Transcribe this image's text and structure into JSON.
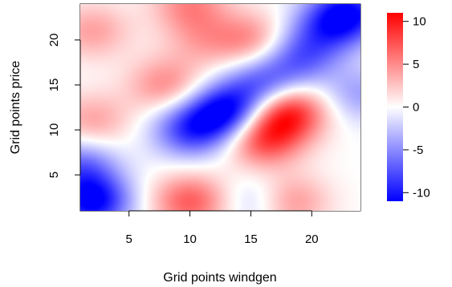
{
  "chart_data": {
    "type": "heatmap",
    "title": "",
    "xlabel": "Grid points windgen",
    "ylabel": "Grid points price",
    "xlim": [
      1,
      24
    ],
    "ylim": [
      1,
      24
    ],
    "x_ticks": [
      5,
      10,
      15,
      20
    ],
    "y_ticks": [
      5,
      10,
      15,
      20
    ],
    "colorbar": {
      "range": [
        -11,
        11
      ],
      "ticks": [
        10,
        5,
        0,
        -5,
        -10
      ],
      "colors": {
        "low": "#0000ff",
        "mid": "#ffffff",
        "high": "#ff0000"
      }
    },
    "features": [
      {
        "x": 13,
        "y": 12,
        "value": -11
      },
      {
        "x": 10,
        "y": 10,
        "value": -8
      },
      {
        "x": 16,
        "y": 15,
        "value": -7
      },
      {
        "x": 19,
        "y": 18,
        "value": -6
      },
      {
        "x": 2,
        "y": 2,
        "value": -11
      },
      {
        "x": 1,
        "y": 6,
        "value": -6
      },
      {
        "x": 23,
        "y": 23,
        "value": -10
      },
      {
        "x": 21,
        "y": 21,
        "value": -5
      },
      {
        "x": 24,
        "y": 14,
        "value": -4
      },
      {
        "x": 16,
        "y": 2,
        "value": -4
      },
      {
        "x": 18,
        "y": 12,
        "value": 10
      },
      {
        "x": 16,
        "y": 9,
        "value": 8
      },
      {
        "x": 18,
        "y": 2,
        "value": 6
      },
      {
        "x": 10,
        "y": 2,
        "value": 7
      },
      {
        "x": 8,
        "y": 15,
        "value": 5
      },
      {
        "x": 2,
        "y": 11,
        "value": 4
      },
      {
        "x": 2,
        "y": 21,
        "value": 4
      },
      {
        "x": 10,
        "y": 24,
        "value": 5
      },
      {
        "x": 15,
        "y": 20,
        "value": 5
      },
      {
        "x": 11,
        "y": 20,
        "value": 3
      }
    ]
  }
}
